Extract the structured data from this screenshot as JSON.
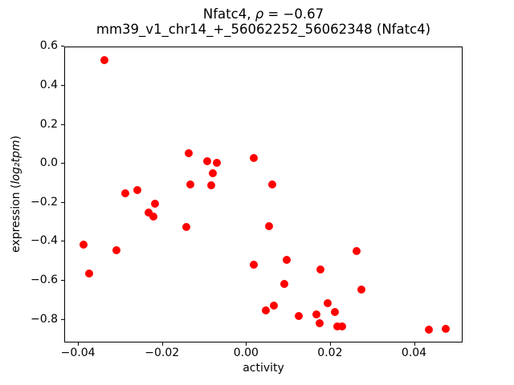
{
  "chart_data": {
    "type": "scatter",
    "title": {
      "prefix": "Nfatc4, ",
      "rho": "ρ",
      "suffix": " = −0.67"
    },
    "subtitle": "mm39_v1_chr14_+_56062252_56062348 (Nfatc4)",
    "xlabel": "activity",
    "ylabel": {
      "prefix": "expression (",
      "math": "log₂tpm",
      "suffix": ")"
    },
    "marker_color": "#ff0000",
    "axes": {
      "xlim": [
        -0.04327,
        0.05157
      ],
      "ylim": [
        -0.9207,
        0.5971
      ],
      "xticks": {
        "values": [
          -0.04,
          -0.02,
          0.0,
          0.02,
          0.04
        ],
        "labels": [
          "−0.04",
          "−0.02",
          "0.00",
          "0.02",
          "0.04"
        ]
      },
      "yticks": {
        "values": [
          0.6,
          0.4,
          0.2,
          0.0,
          -0.2,
          -0.4,
          -0.6,
          -0.8
        ],
        "labels": [
          "0.6",
          "0.4",
          "0.2",
          "0.0",
          "−0.2",
          "−0.4",
          "−0.6",
          "−0.8"
        ]
      },
      "grid": false,
      "background": "#ffffff"
    },
    "points": [
      [
        -0.034,
        0.53
      ],
      [
        -0.029,
        -0.15
      ],
      [
        -0.0261,
        -0.133
      ],
      [
        -0.0219,
        -0.204
      ],
      [
        -0.0233,
        -0.251
      ],
      [
        -0.0223,
        -0.272
      ],
      [
        -0.0145,
        -0.325
      ],
      [
        -0.0389,
        -0.415
      ],
      [
        -0.0311,
        -0.444
      ],
      [
        -0.0375,
        -0.561
      ],
      [
        -0.0138,
        0.056
      ],
      [
        -0.0095,
        0.015
      ],
      [
        -0.0071,
        0.004
      ],
      [
        -0.0081,
        -0.048
      ],
      [
        -0.0134,
        -0.107
      ],
      [
        -0.0084,
        -0.11
      ],
      [
        0.0016,
        0.029
      ],
      [
        0.0061,
        -0.108
      ],
      [
        0.0052,
        -0.322
      ],
      [
        0.0017,
        -0.517
      ],
      [
        0.0095,
        -0.494
      ],
      [
        0.0176,
        -0.543
      ],
      [
        0.0261,
        -0.449
      ],
      [
        0.0089,
        -0.615
      ],
      [
        0.0272,
        -0.644
      ],
      [
        0.0192,
        -0.714
      ],
      [
        0.0064,
        -0.728
      ],
      [
        0.0046,
        -0.75
      ],
      [
        0.0124,
        -0.78
      ],
      [
        0.0165,
        -0.773
      ],
      [
        0.0209,
        -0.761
      ],
      [
        0.0174,
        -0.817
      ],
      [
        0.0216,
        -0.836
      ],
      [
        0.0226,
        -0.836
      ],
      [
        0.0434,
        -0.852
      ],
      [
        0.0473,
        -0.846
      ]
    ]
  }
}
